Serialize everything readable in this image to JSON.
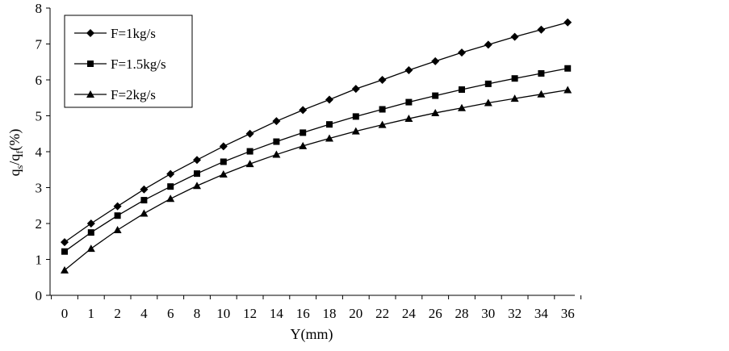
{
  "chart_data": {
    "type": "line",
    "title": "",
    "xlabel": "Y(mm)",
    "ylabel": "q_s/q_f(%)",
    "ylabel_parts": {
      "q1": "q",
      "s": "s",
      "slash": "/",
      "q2": "q",
      "f": "f",
      "unit": "(%)"
    },
    "categories": [
      "0",
      "1",
      "2",
      "4",
      "6",
      "8",
      "10",
      "12",
      "14",
      "16",
      "18",
      "20",
      "22",
      "24",
      "26",
      "28",
      "30",
      "32",
      "34",
      "36"
    ],
    "ylim": [
      0,
      8
    ],
    "yticks": [
      0,
      1,
      2,
      3,
      4,
      5,
      6,
      7,
      8
    ],
    "grid": false,
    "legend_position": "top-left",
    "series": [
      {
        "name": "F=1kg/s",
        "marker": "diamond",
        "values": [
          1.48,
          2.0,
          2.48,
          2.95,
          3.38,
          3.77,
          4.15,
          4.5,
          4.85,
          5.16,
          5.45,
          5.75,
          6.0,
          6.27,
          6.52,
          6.76,
          6.98,
          7.2,
          7.4,
          7.6
        ]
      },
      {
        "name": "F=1.5kg/s",
        "marker": "square",
        "values": [
          1.22,
          1.75,
          2.22,
          2.65,
          3.03,
          3.39,
          3.72,
          4.01,
          4.28,
          4.53,
          4.76,
          4.98,
          5.18,
          5.38,
          5.56,
          5.73,
          5.89,
          6.04,
          6.18,
          6.32
        ]
      },
      {
        "name": "F=2kg/s",
        "marker": "triangle",
        "values": [
          0.7,
          1.3,
          1.82,
          2.28,
          2.69,
          3.05,
          3.37,
          3.66,
          3.92,
          4.16,
          4.37,
          4.57,
          4.75,
          4.92,
          5.08,
          5.22,
          5.36,
          5.48,
          5.6,
          5.72
        ]
      }
    ],
    "colors": {
      "line": "#000000",
      "background": "#ffffff"
    }
  }
}
